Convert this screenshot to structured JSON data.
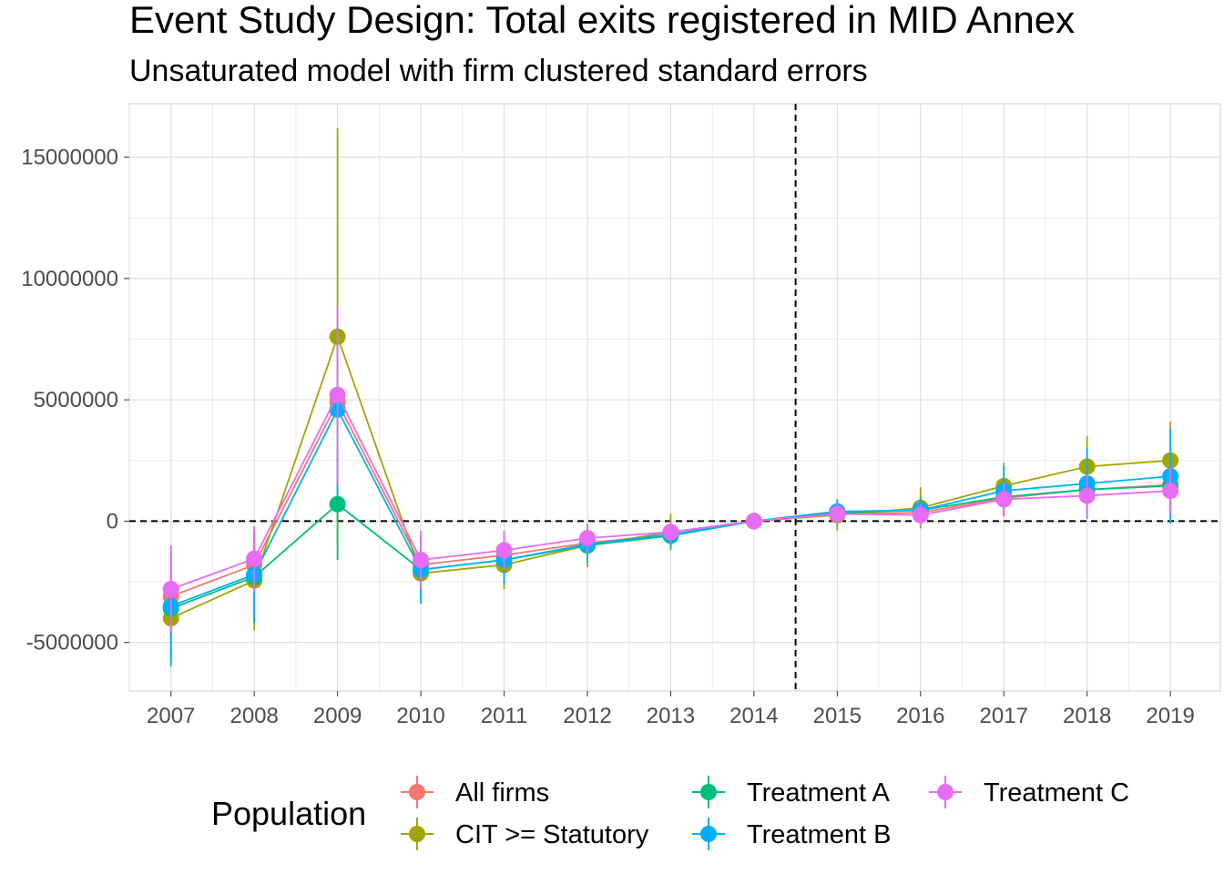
{
  "title": "Event Study Design: Total exits registered in MID Annex",
  "subtitle": "Unsaturated model with firm clustered standard errors",
  "legend": {
    "title": "Population",
    "entries": [
      "All firms",
      "CIT >= Statutory",
      "Treatment A",
      "Treatment B",
      "Treatment C"
    ]
  },
  "colors": {
    "All firms": "#F8766D",
    "CIT >= Statutory": "#A3A500",
    "Treatment A": "#00BF7D",
    "Treatment B": "#00B0F6",
    "Treatment C": "#E76BF3",
    "grid": "#dedede",
    "reference_line": "#000000"
  },
  "chart_data": {
    "type": "line",
    "title": "Event Study Design: Total exits registered in MID Annex",
    "subtitle": "Unsaturated model with firm clustered standard errors",
    "xlabel": "",
    "ylabel": "",
    "x": [
      2007,
      2008,
      2009,
      2010,
      2011,
      2012,
      2013,
      2014,
      2015,
      2016,
      2017,
      2018,
      2019
    ],
    "ylim": [
      -7000000,
      17200000
    ],
    "yticks": [
      -5000000,
      0,
      5000000,
      10000000,
      15000000
    ],
    "ytick_labels": [
      "-5000000",
      "0",
      "5000000",
      "10000000",
      "15000000"
    ],
    "reference_lines": {
      "x": 2014.5,
      "y": 0
    },
    "grid": true,
    "legend_position": "bottom",
    "series": [
      {
        "name": "All firms",
        "values": [
          -3100000,
          -1800000,
          4900000,
          -1800000,
          -1400000,
          -900000,
          -550000,
          0,
          300000,
          350000,
          950000,
          1300000,
          1500000
        ],
        "lower": [
          -5000000,
          -3200000,
          1200000,
          -3100000,
          -2200000,
          -1500000,
          -1000000,
          0,
          -100000,
          -50000,
          300000,
          500000,
          500000
        ],
        "upper": [
          -1200000,
          -400000,
          8600000,
          -500000,
          -600000,
          -300000,
          -100000,
          0,
          700000,
          750000,
          1600000,
          2100000,
          2500000
        ]
      },
      {
        "name": "CIT >= Statutory",
        "values": [
          -4000000,
          -2450000,
          7600000,
          -2150000,
          -1800000,
          -1000000,
          -450000,
          0,
          250000,
          550000,
          1450000,
          2250000,
          2500000
        ],
        "lower": [
          -5800000,
          -4500000,
          -1000000,
          -3300000,
          -2800000,
          -1900000,
          -1200000,
          0,
          -400000,
          -300000,
          500000,
          1000000,
          900000
        ],
        "upper": [
          -2200000,
          -400000,
          16200000,
          -1000000,
          -800000,
          -100000,
          300000,
          0,
          900000,
          1400000,
          2400000,
          3500000,
          4100000
        ]
      },
      {
        "name": "Treatment A",
        "values": [
          -3600000,
          -2300000,
          700000,
          -2000000,
          -1600000,
          -1000000,
          -600000,
          0,
          350000,
          450000,
          1000000,
          1300000,
          1450000
        ],
        "lower": [
          -5800000,
          -4200000,
          -1600000,
          -3300000,
          -2600000,
          -1700000,
          -1100000,
          0,
          -150000,
          -50000,
          200000,
          300000,
          200000
        ],
        "upper": [
          -1400000,
          -400000,
          3000000,
          -700000,
          -600000,
          -300000,
          -100000,
          0,
          850000,
          950000,
          1800000,
          2300000,
          2700000
        ]
      },
      {
        "name": "Treatment B",
        "values": [
          -3500000,
          -2200000,
          4600000,
          -2000000,
          -1600000,
          -950000,
          -550000,
          0,
          400000,
          450000,
          1250000,
          1550000,
          1850000
        ],
        "lower": [
          -6000000,
          -4000000,
          1000000,
          -3400000,
          -2600000,
          -1700000,
          -1100000,
          0,
          -100000,
          -100000,
          200000,
          100000,
          -100000
        ],
        "upper": [
          -1000000,
          -400000,
          8200000,
          -600000,
          -600000,
          -200000,
          0,
          0,
          900000,
          1000000,
          2300000,
          3000000,
          3800000
        ]
      },
      {
        "name": "Treatment C",
        "values": [
          -2800000,
          -1550000,
          5200000,
          -1600000,
          -1200000,
          -700000,
          -450000,
          0,
          300000,
          250000,
          900000,
          1050000,
          1250000
        ],
        "lower": [
          -4600000,
          -2900000,
          1500000,
          -2800000,
          -2000000,
          -1300000,
          -900000,
          0,
          -150000,
          -200000,
          200000,
          200000,
          300000
        ],
        "upper": [
          -1000000,
          -200000,
          8900000,
          -400000,
          -400000,
          -100000,
          0,
          0,
          750000,
          700000,
          1600000,
          1900000,
          2200000
        ]
      }
    ]
  }
}
